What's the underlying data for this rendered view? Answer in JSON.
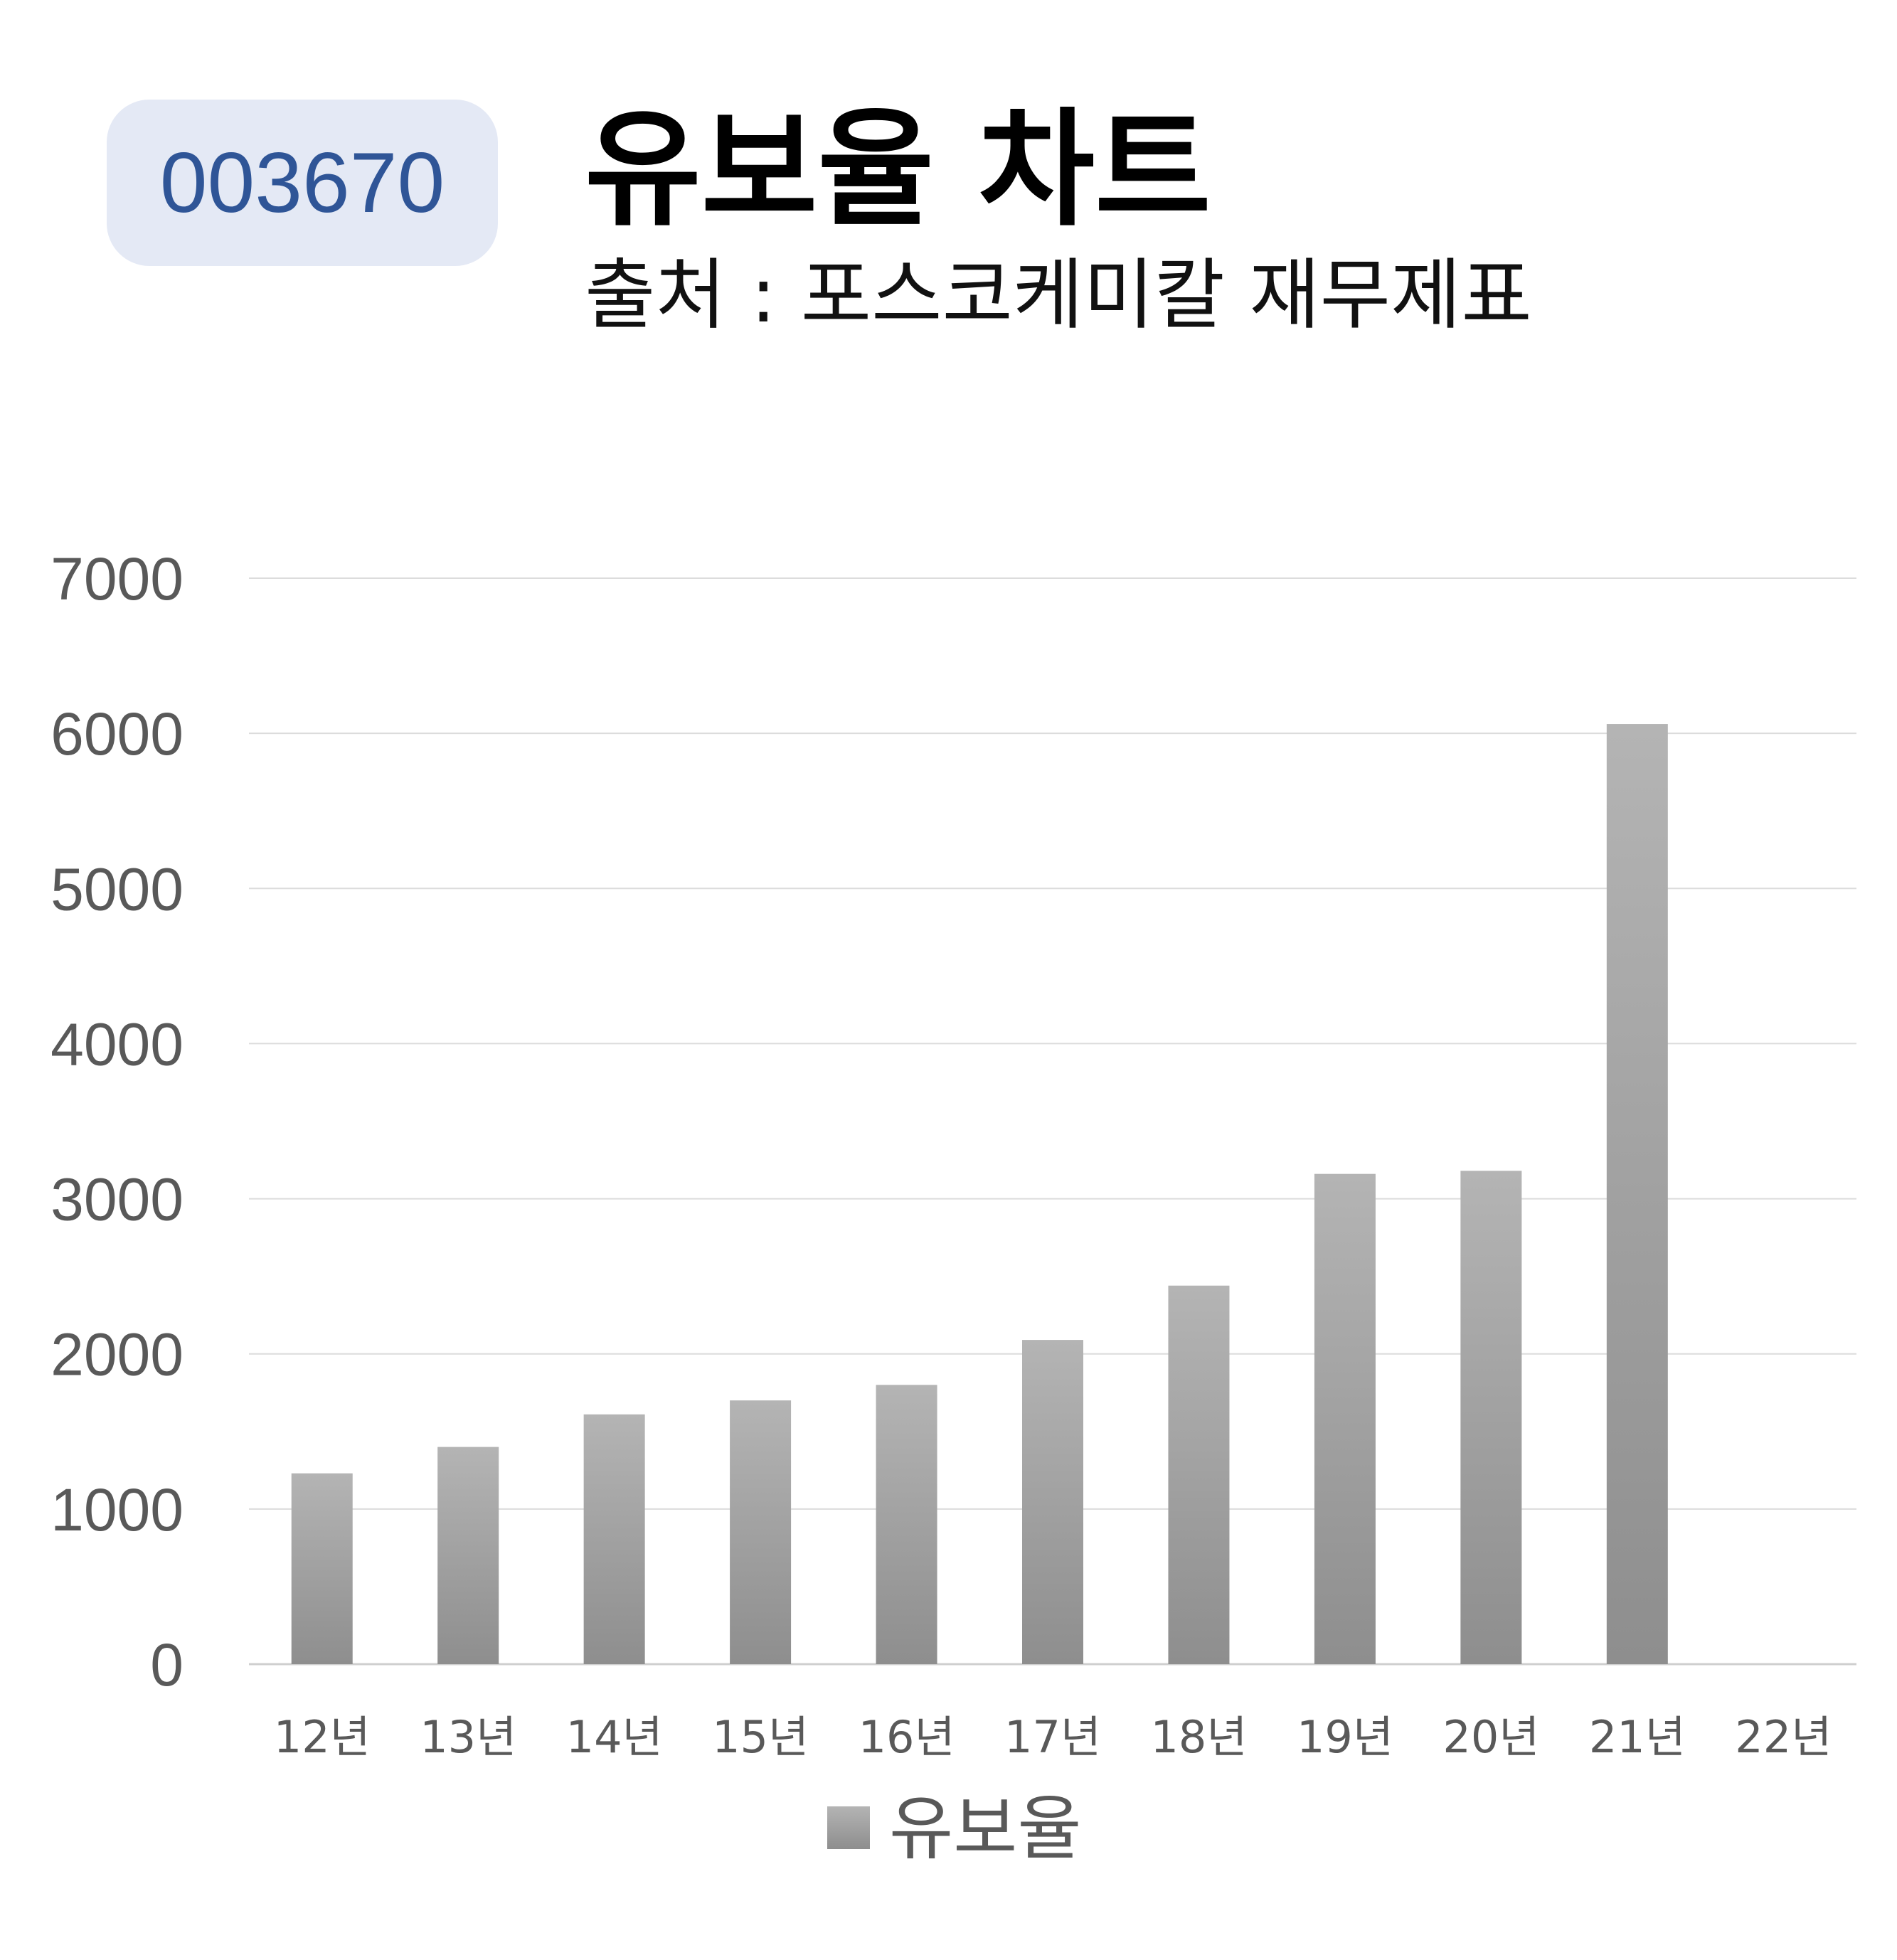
{
  "badge": {
    "code": "003670"
  },
  "header": {
    "title": "유보율 차트",
    "subtitle": "출처 : 포스코케미칼 재무제표"
  },
  "colors": {
    "bar_top": "#b4b4b4",
    "bar_bottom": "#8e8e8e",
    "grid": "#d9d9d9",
    "badge_bg": "#e4e9f5",
    "badge_text": "#2f5597"
  },
  "chart_data": {
    "type": "bar",
    "categories": [
      "12년",
      "13년",
      "14년",
      "15년",
      "16년",
      "17년",
      "18년",
      "19년",
      "20년",
      "21년",
      "22년"
    ],
    "series": [
      {
        "name": "유보율",
        "values": [
          1230,
          1400,
          1610,
          1700,
          1800,
          2090,
          2440,
          3160,
          3180,
          6060,
          null
        ]
      }
    ],
    "ylim": [
      0,
      7000
    ],
    "yticks": [
      0,
      1000,
      2000,
      3000,
      4000,
      5000,
      6000,
      7000
    ],
    "grid": true,
    "legend": "bottom"
  }
}
